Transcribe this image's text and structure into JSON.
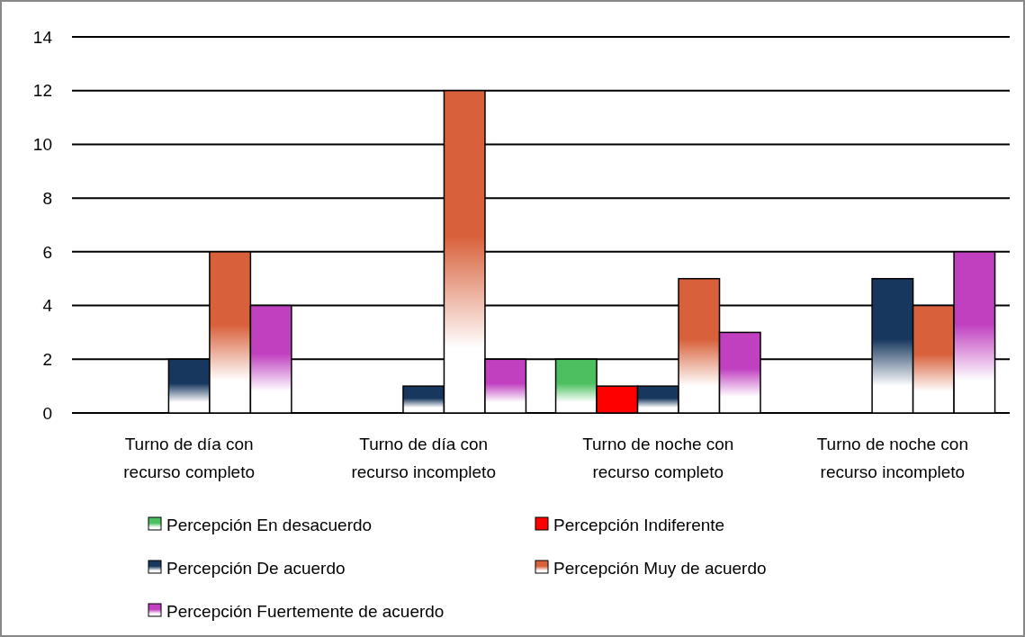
{
  "chart_data": {
    "type": "bar",
    "categories": [
      "Turno de día con recurso completo",
      "Turno de día con recurso incompleto",
      "Turno de noche con recurso completo",
      "Turno de noche con recurso incompleto"
    ],
    "series": [
      {
        "name": "Percepción En desacuerdo",
        "color": "#4cc060",
        "values": [
          0,
          0,
          2,
          0
        ]
      },
      {
        "name": "Percepción Indiferente",
        "color": "#ff0000",
        "values": [
          0,
          0,
          1,
          0
        ]
      },
      {
        "name": "Percepción De acuerdo",
        "color": "#17375e",
        "values": [
          2,
          1,
          1,
          5
        ]
      },
      {
        "name": "Percepción Muy de acuerdo",
        "color": "#d8603a",
        "values": [
          6,
          12,
          5,
          4
        ]
      },
      {
        "name": "Percepción Fuertemente de acuerdo",
        "color": "#c040c0",
        "values": [
          4,
          2,
          3,
          6
        ]
      }
    ],
    "ylim": [
      0,
      14
    ],
    "yticks": [
      0,
      2,
      4,
      6,
      8,
      10,
      12,
      14
    ],
    "grid": "y",
    "legend": "bottom"
  }
}
